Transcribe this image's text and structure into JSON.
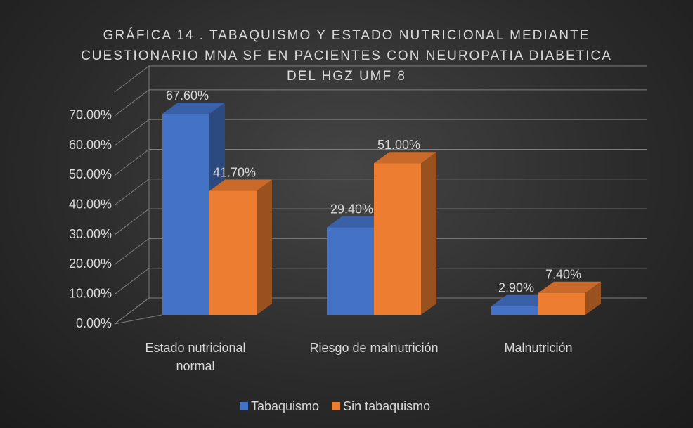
{
  "chart_data": {
    "type": "bar3d",
    "title": "GRÁFICA 14 . TABAQUISMO Y ESTADO NUTRICIONAL MEDIANTE CUESTIONARIO MNA SF EN PACIENTES CON NEUROPATIA DIABETICA DEL HGZ UMF 8",
    "categories": [
      "Estado nutricional normal",
      "Riesgo de malnutrición",
      "Malnutrición"
    ],
    "series": [
      {
        "name": "Tabaquismo",
        "color": "#4472c4",
        "values": [
          67.6,
          29.4,
          2.9
        ],
        "value_labels": [
          "67.60%",
          "29.40%",
          "2.90%"
        ]
      },
      {
        "name": "Sin tabaquismo",
        "color": "#ed7d31",
        "values": [
          41.7,
          51.0,
          7.4
        ],
        "value_labels": [
          "41.70%",
          "51.00%",
          "7.40%"
        ]
      }
    ],
    "ylim": [
      0,
      78
    ],
    "yticks": [
      {
        "value": 0,
        "label": "0.00%"
      },
      {
        "value": 10,
        "label": "10.00%"
      },
      {
        "value": 20,
        "label": "20.00%"
      },
      {
        "value": 30,
        "label": "30.00%"
      },
      {
        "value": 40,
        "label": "40.00%"
      },
      {
        "value": 50,
        "label": "50.00%"
      },
      {
        "value": 60,
        "label": "60.00%"
      },
      {
        "value": 70,
        "label": "70.00%"
      }
    ],
    "grid": true,
    "legend": "bottom"
  }
}
